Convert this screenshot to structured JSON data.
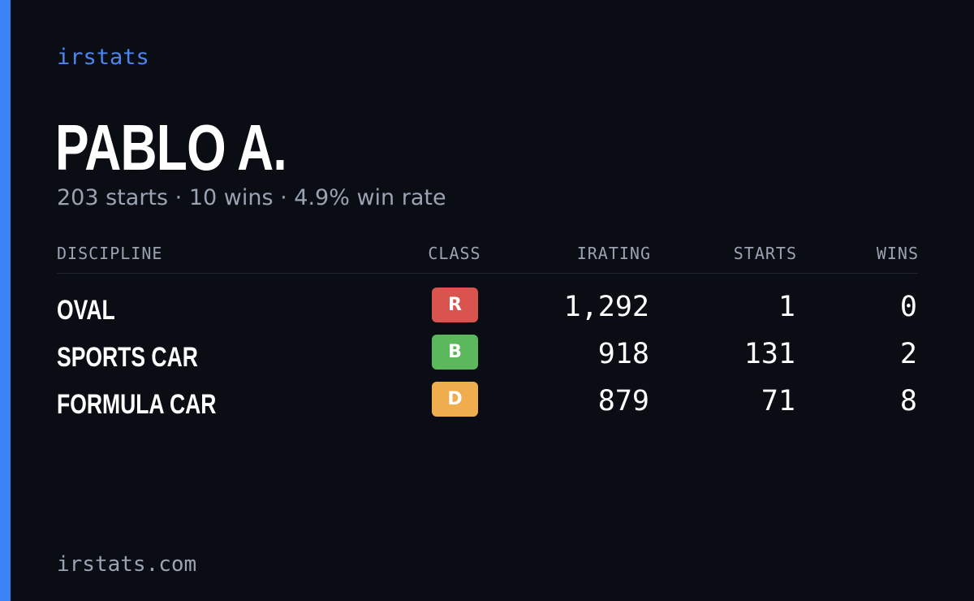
{
  "brand": "irstats",
  "driver": {
    "name": "PABLO A.",
    "summary": "203 starts · 10 wins · 4.9% win rate"
  },
  "table": {
    "headers": {
      "discipline": "DISCIPLINE",
      "class": "CLASS",
      "irating": "IRATING",
      "starts": "STARTS",
      "wins": "WINS"
    },
    "rows": [
      {
        "discipline": "OVAL",
        "class": "R",
        "class_color": "#d9534f",
        "irating": "1,292",
        "starts": "1",
        "wins": "0"
      },
      {
        "discipline": "SPORTS CAR",
        "class": "B",
        "class_color": "#5cb85c",
        "irating": "918",
        "starts": "131",
        "wins": "2"
      },
      {
        "discipline": "FORMULA CAR",
        "class": "D",
        "class_color": "#f0ad4e",
        "irating": "879",
        "starts": "71",
        "wins": "8"
      }
    ]
  },
  "footer": "irstats.com",
  "colors": {
    "accent": "#3b82f6",
    "background": "#0a0d14",
    "muted": "#9aa3b2"
  }
}
